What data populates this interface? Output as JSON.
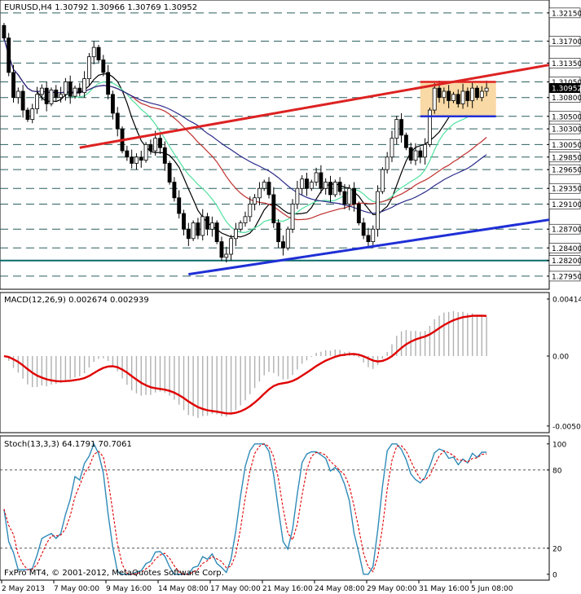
{
  "chart_data": [
    {
      "type": "candlestick",
      "title": "EURUSD,H4  1.30792 1.30966 1.30769 1.30952",
      "symbol": "EURUSD",
      "timeframe": "H4",
      "ohlc_readout": {
        "open": 1.30792,
        "high": 1.30966,
        "low": 1.30769,
        "close": 1.30952
      },
      "current_price": "1.30952",
      "ylim": [
        1.2778,
        1.3233
      ],
      "y_ticks": [
        "1.32150",
        "1.31700",
        "1.31350",
        "1.31050",
        "1.30800",
        "1.30500",
        "1.30300",
        "1.30050",
        "1.29850",
        "1.29650",
        "1.29350",
        "1.29100",
        "1.28700",
        "1.28400",
        "1.28200",
        "1.27950"
      ],
      "horizontal_levels": [
        1.3215,
        1.317,
        1.3135,
        1.3105,
        1.308,
        1.305,
        1.303,
        1.3005,
        1.2985,
        1.2965,
        1.2935,
        1.291,
        1.287,
        1.284,
        1.282,
        1.2795
      ],
      "highlight_level": 1.282,
      "x_labels": [
        "2 May 2013",
        "7 May 00:00",
        "9 May 16:00",
        "14 May 08:00",
        "17 May 00:00",
        "21 May 16:00",
        "24 May 08:00",
        "29 May 00:00",
        "31 May 16:00",
        "5 Jun 08:00"
      ],
      "close": [
        1.3175,
        1.312,
        1.308,
        1.309,
        1.306,
        1.3045,
        1.3062,
        1.3085,
        1.3095,
        1.307,
        1.3092,
        1.308,
        1.3085,
        1.3105,
        1.3082,
        1.3095,
        1.3088,
        1.311,
        1.3145,
        1.316,
        1.314,
        1.312,
        1.3085,
        1.3055,
        1.303,
        1.2995,
        1.2985,
        1.2975,
        1.2985,
        1.298,
        1.3005,
        1.2995,
        1.3015,
        1.3,
        1.2975,
        1.2945,
        1.292,
        1.2895,
        1.287,
        1.2855,
        1.288,
        1.286,
        1.289,
        1.287,
        1.288,
        1.285,
        1.2825,
        1.283,
        1.2855,
        1.287,
        1.288,
        1.289,
        1.291,
        1.292,
        1.2935,
        1.2945,
        1.2925,
        1.288,
        1.285,
        1.284,
        1.287,
        1.291,
        1.2935,
        1.295,
        1.2935,
        1.2945,
        1.296,
        1.2935,
        1.2945,
        1.2925,
        1.2945,
        1.293,
        1.291,
        1.2935,
        1.291,
        1.288,
        1.286,
        1.285,
        1.287,
        1.293,
        1.2965,
        1.2985,
        1.3015,
        1.3045,
        1.302,
        1.3,
        1.298,
        1.2995,
        1.2985,
        1.3005,
        1.306,
        1.3095,
        1.308,
        1.309,
        1.3075,
        1.3085,
        1.307,
        1.309,
        1.3075,
        1.3095,
        1.308,
        1.309,
        1.3095
      ],
      "lines": [
        {
          "color": "#dd2222",
          "role": "resistance trendline"
        },
        {
          "color": "#1f2fd6",
          "role": "support trendline"
        },
        {
          "color": "#1f2fd6",
          "role": "range lower bound"
        },
        {
          "color": "#dd2222",
          "role": "range upper bound"
        }
      ],
      "moving_averages": [
        {
          "color": "#000000"
        },
        {
          "color": "#50e0a0"
        },
        {
          "color": "#c03030"
        },
        {
          "color": "#2a2a8a"
        }
      ],
      "range_box_color": "#f9d9a5"
    },
    {
      "type": "macd",
      "title": "MACD(12,26,9) 0.002674 0.002939",
      "params": "12,26,9",
      "main_value": "0.002674",
      "signal_value": "0.002939",
      "y_ticks": [
        "0.004146",
        "0.00",
        "-0.005085"
      ],
      "ylim": [
        -0.00545,
        0.0045
      ],
      "histogram_color": "#b0b0b0",
      "signal_color": "#e00000"
    },
    {
      "type": "stochastic",
      "title": "Stoch(13,3,3) 64.1791 70.7061",
      "params": "13,3,3",
      "k_value": "64.1791",
      "d_value": "70.7061",
      "y_ticks": [
        "100",
        "80",
        "20",
        "0"
      ],
      "ylim": [
        -2,
        103
      ],
      "levels": [
        80,
        20
      ],
      "k_color": "#2e8ab8",
      "d_color": "#e00000"
    }
  ],
  "footer": {
    "copyright": "FxPro MT4, © 2001-2012, MetaQuotes Software Corp."
  }
}
